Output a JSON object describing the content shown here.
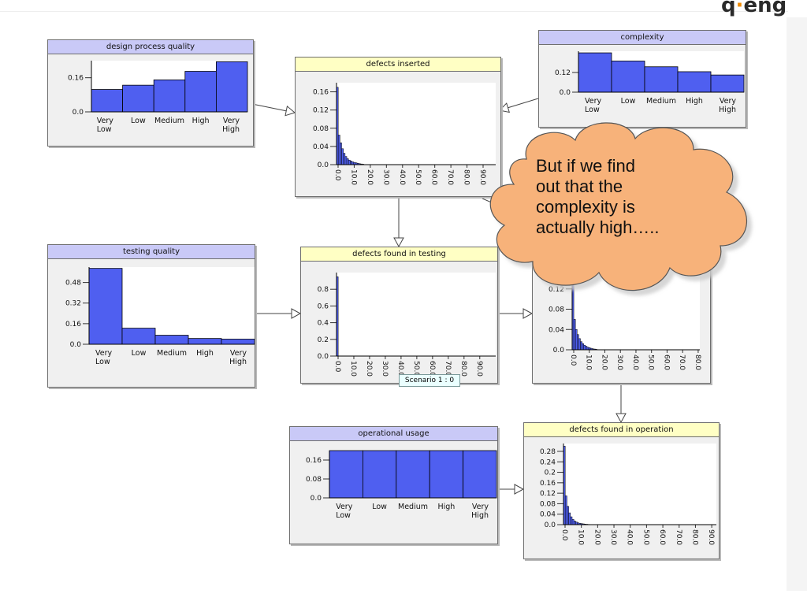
{
  "logo": {
    "text": "q⋅eng"
  },
  "tooltip": "Scenario 1 : 0",
  "callout": {
    "lines": [
      "But if we find",
      "out that the",
      "complexity is",
      "actually high….."
    ]
  },
  "colors": {
    "bar": "#4f5ff0",
    "blue_header": "#c9c9f7",
    "yellow_header": "#ffffc4",
    "cloud": "#f7b27a"
  },
  "category_labels": [
    [
      "Very",
      "Low"
    ],
    [
      "Low"
    ],
    [
      "Medium"
    ],
    [
      "High"
    ],
    [
      "Very",
      "High"
    ]
  ],
  "numeric_ticks": [
    "0.0",
    "10.0",
    "20.0",
    "30.0",
    "40.0",
    "50.0",
    "60.0",
    "70.0",
    "80.0",
    "90.0"
  ],
  "nodes": [
    {
      "id": "design",
      "title": "design process quality",
      "header": "blue",
      "kind": "cat",
      "yticks": [
        "0.16",
        "0.0"
      ],
      "values": [
        0.105,
        0.125,
        0.15,
        0.19,
        0.235
      ]
    },
    {
      "id": "complexity",
      "title": "complexity",
      "header": "blue",
      "kind": "cat",
      "yticks": [
        "0.12",
        "0.0"
      ],
      "values": [
        0.24,
        0.19,
        0.155,
        0.125,
        0.105
      ]
    },
    {
      "id": "testing",
      "title": "testing quality",
      "header": "blue",
      "kind": "cat",
      "yticks": [
        "0.48",
        "0.32",
        "0.16",
        "0.0"
      ],
      "values": [
        0.59,
        0.125,
        0.07,
        0.045,
        0.04
      ]
    },
    {
      "id": "usage",
      "title": "operational usage",
      "header": "blue",
      "kind": "cat",
      "yticks": [
        "0.16",
        "0.08",
        "0.0"
      ],
      "values": [
        0.2,
        0.2,
        0.2,
        0.2,
        0.2
      ]
    },
    {
      "id": "inserted",
      "title": "defects inserted",
      "header": "yellow",
      "kind": "num",
      "yticks": [
        "0.16",
        "0.12",
        "0.08",
        "0.04",
        "0.0"
      ],
      "values": [
        0.17,
        0.065,
        0.048,
        0.035,
        0.025,
        0.018,
        0.013,
        0.01,
        0.008,
        0.006,
        0.005,
        0.004,
        0.003,
        0.002,
        0.0015,
        0.001
      ]
    },
    {
      "id": "found_testing",
      "title": "defects found in testing",
      "header": "yellow",
      "kind": "num",
      "yticks": [
        "0.8",
        "0.6",
        "0.4",
        "0.2",
        "0.0"
      ],
      "values": [
        0.95
      ]
    },
    {
      "id": "residual",
      "title": "",
      "header": "yellow",
      "kind": "num",
      "yticks": [
        "0.12",
        "0.08",
        "0.04",
        "0.0"
      ],
      "values": [
        0.15,
        0.06,
        0.04,
        0.03,
        0.022,
        0.016,
        0.012,
        0.009,
        0.007,
        0.005,
        0.004,
        0.003,
        0.002,
        0.0015,
        0.001
      ]
    },
    {
      "id": "operation",
      "title": "defects found in operation",
      "header": "yellow",
      "kind": "num",
      "yticks": [
        "0.28",
        "0.24",
        "0.2",
        "0.16",
        "0.12",
        "0.08",
        "0.04",
        "0.0"
      ],
      "values": [
        0.3,
        0.11,
        0.07,
        0.045,
        0.03,
        0.02,
        0.014,
        0.01,
        0.007,
        0.005,
        0.004,
        0.003,
        0.002,
        0.0015,
        0.001
      ]
    }
  ]
}
